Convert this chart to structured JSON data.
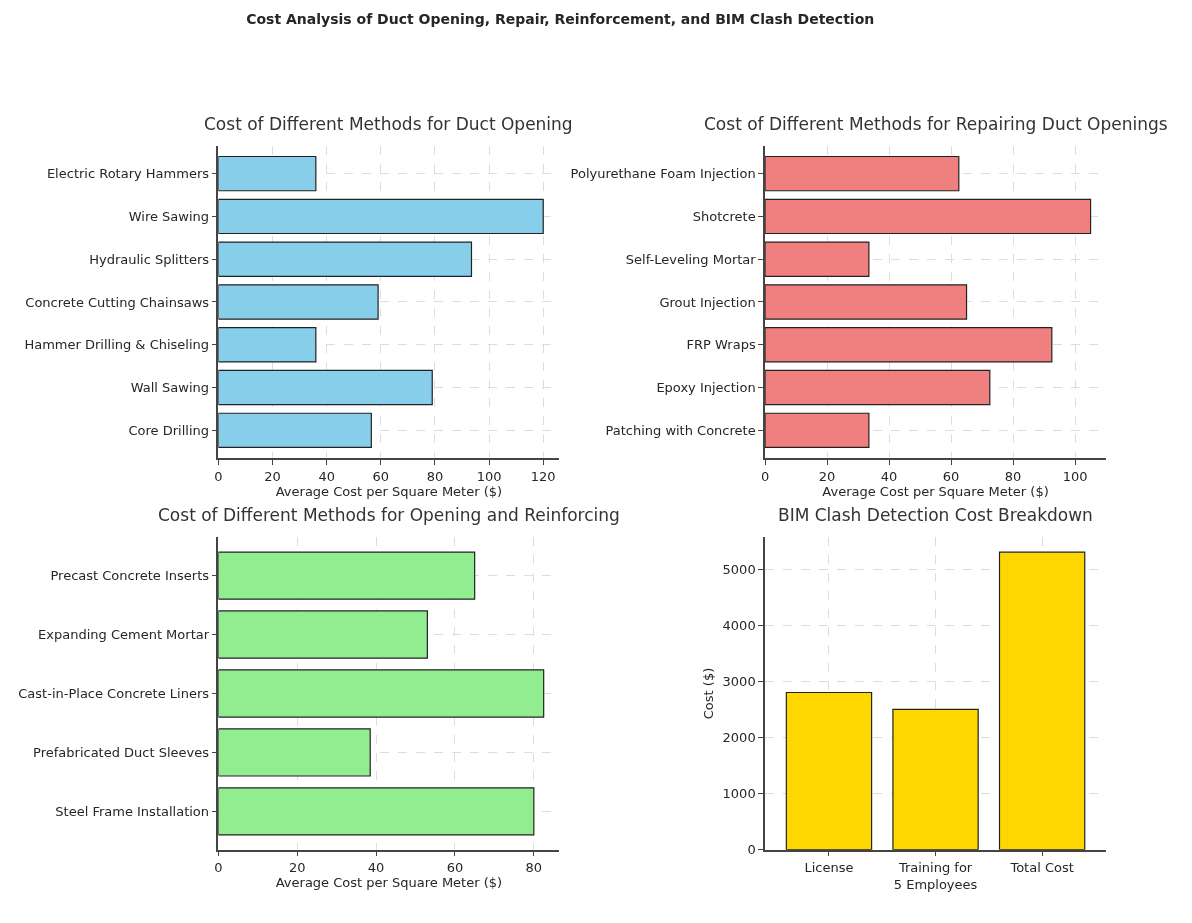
{
  "chart_data": [
    {
      "type": "bar",
      "title": "Cost of Different Methods for Duct Opening",
      "annotations": [
        "Cost Analysis of Duct Opening, Repair, Reinforcement, and BIM Clash Detection"
      ],
      "orientation": "horizontal",
      "xlabel": "Average Cost per Square Meter ($)",
      "categories": [
        "Electric Rotary Hammers",
        "Wire Sawing",
        "Hydraulic Splitters",
        "Concrete Cutting Chainsaws",
        "Hammer Drilling & Chiseling",
        "Wall Sawing",
        "Core Drilling"
      ],
      "values": [
        36,
        120,
        93.5,
        59,
        36,
        79,
        56.5
      ],
      "color": "#87ceeb",
      "xlim": [
        0,
        126
      ],
      "xticks": [
        0,
        20,
        40,
        60,
        80,
        100,
        120
      ],
      "grid": true
    },
    {
      "type": "bar",
      "title": "Cost of Different Methods for Repairing Duct Openings",
      "orientation": "horizontal",
      "xlabel": "Average Cost per Square Meter ($)",
      "categories": [
        "Polyurethane Foam Injection",
        "Shotcrete",
        "Self-Leveling Mortar",
        "Grout Injection",
        "FRP Wraps",
        "Epoxy Injection",
        "Patching with Concrete"
      ],
      "values": [
        62.5,
        105,
        33.5,
        65,
        92.5,
        72.5,
        33.5
      ],
      "color": "#f08080",
      "xlim": [
        0,
        110
      ],
      "xticks": [
        0,
        20,
        40,
        60,
        80,
        100
      ],
      "grid": true
    },
    {
      "type": "bar",
      "title": "Cost of Different Methods for Opening and Reinforcing",
      "orientation": "horizontal",
      "xlabel": "Average Cost per Square Meter ($)",
      "categories": [
        "Precast Concrete Inserts",
        "Expanding Cement Mortar",
        "Cast-in-Place Concrete Liners",
        "Prefabricated Duct Sleeves",
        "Steel Frame Installation"
      ],
      "values": [
        65,
        53,
        82.5,
        38.5,
        80
      ],
      "color": "#90ee90",
      "xlim": [
        0,
        86.5
      ],
      "xticks": [
        0,
        20,
        40,
        60,
        80
      ],
      "grid": true
    },
    {
      "type": "bar",
      "title": "BIM Clash Detection Cost Breakdown",
      "ylabel": "Cost ($)",
      "categories": [
        "License",
        "Training for 5 Employees",
        "Total Cost"
      ],
      "values": [
        2800,
        2500,
        5300
      ],
      "color": "#ffd700",
      "ylim": [
        0,
        5565
      ],
      "yticks": [
        0,
        1000,
        2000,
        3000,
        4000,
        5000
      ],
      "grid": true
    }
  ]
}
